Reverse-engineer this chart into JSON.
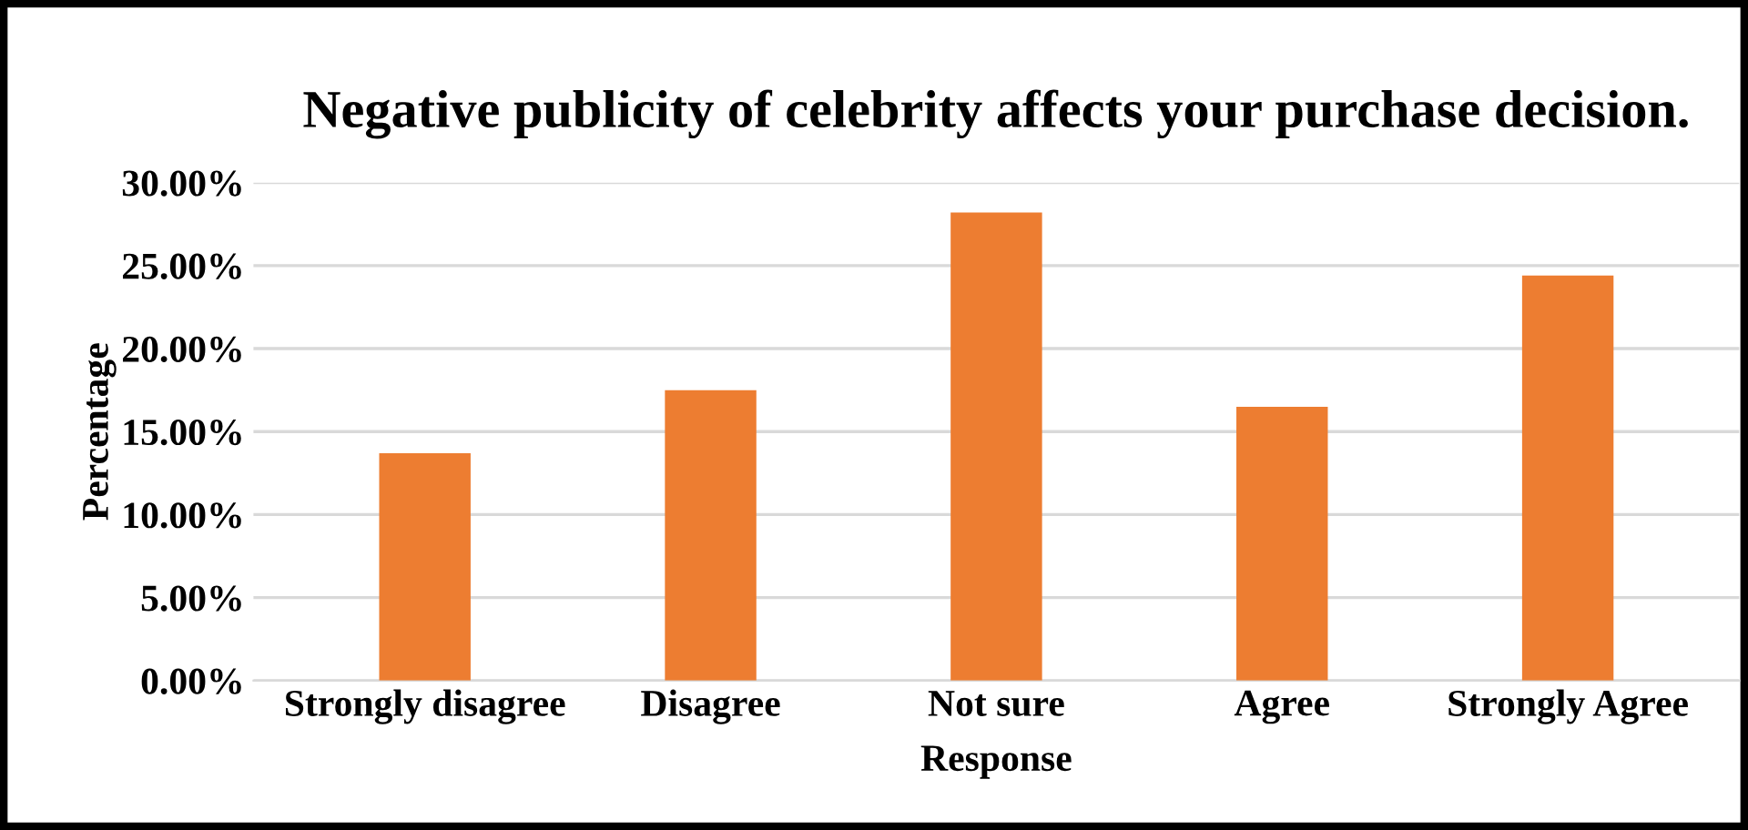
{
  "chart_data": {
    "type": "bar",
    "title": "Negative publicity of celebrity affects your purchase decision.",
    "xlabel": "Response",
    "ylabel": "Percentage",
    "categories": [
      "Strongly disagree",
      "Disagree",
      "Not sure",
      "Agree",
      "Strongly Agree"
    ],
    "values": [
      13.7,
      17.5,
      28.2,
      16.5,
      24.4
    ],
    "color": "#ed7d31",
    "ylim": [
      0,
      30
    ],
    "yticks": [
      {
        "value": 0,
        "label": "0.00%"
      },
      {
        "value": 5,
        "label": "5.00%"
      },
      {
        "value": 10,
        "label": "10.00%"
      },
      {
        "value": 15,
        "label": "15.00%"
      },
      {
        "value": 20,
        "label": "20.00%"
      },
      {
        "value": 25,
        "label": "25.00%"
      },
      {
        "value": 30,
        "label": "30.00%"
      }
    ],
    "grid": "y",
    "legend": false
  }
}
